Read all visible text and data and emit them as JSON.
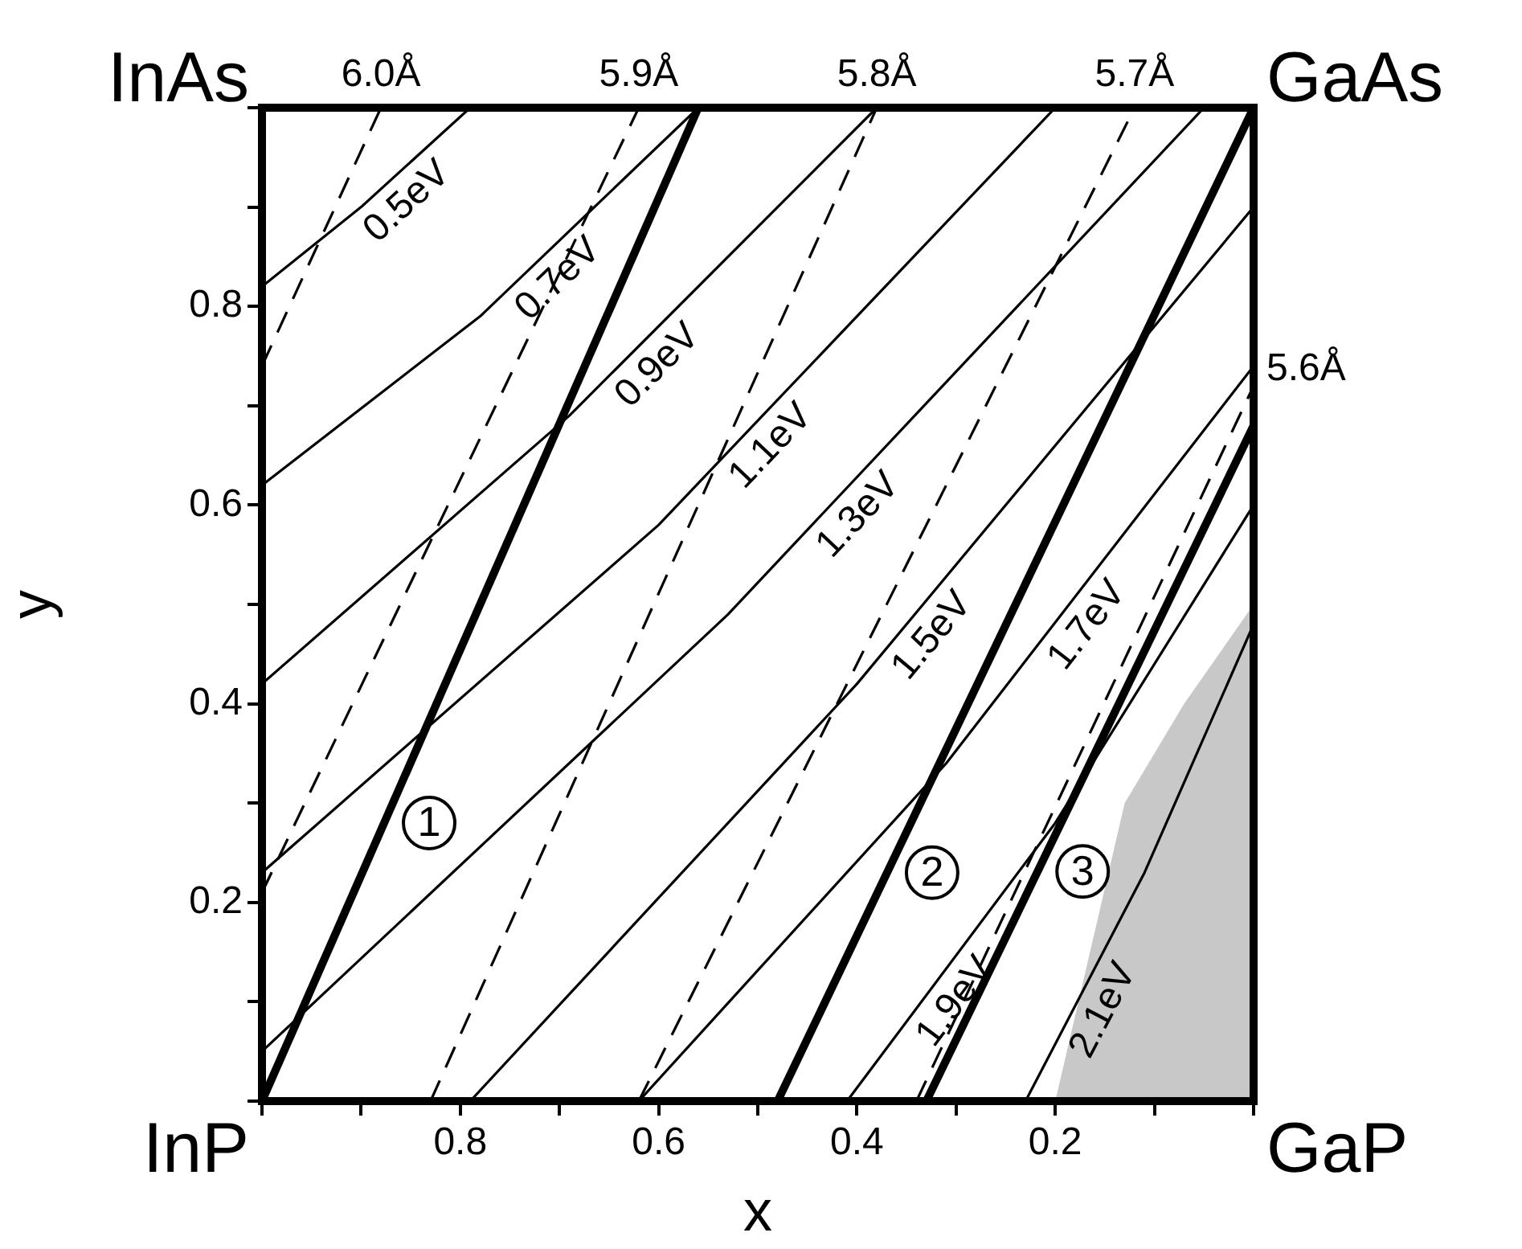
{
  "chart_data": {
    "type": "line",
    "xlabel": "x",
    "ylabel": "y",
    "xlim": [
      1,
      0
    ],
    "ylim": [
      0,
      1
    ],
    "xticks": [
      {
        "value": 1,
        "label": null
      },
      {
        "value": 0.9,
        "label": null
      },
      0.8,
      {
        "value": 0.7,
        "label": null
      },
      0.6,
      {
        "value": 0.5,
        "label": null
      },
      0.4,
      {
        "value": 0.3,
        "label": null
      },
      0.2,
      {
        "value": 0.1,
        "label": null
      },
      {
        "value": 0,
        "label": null
      }
    ],
    "yticks": [
      {
        "value": 0,
        "label": null
      },
      {
        "value": 0.1,
        "label": null
      },
      0.2,
      {
        "value": 0.3,
        "label": null
      },
      0.4,
      {
        "value": 0.5,
        "label": null
      },
      0.6,
      {
        "value": 0.7,
        "label": null
      },
      0.8,
      {
        "value": 0.9,
        "label": null
      },
      {
        "value": 1,
        "label": null
      }
    ],
    "grid": false,
    "legend": false,
    "marker": "none",
    "series": [
      {
        "name": "0.5eV",
        "color": "#000000",
        "line_style": "solid",
        "x": [
          1,
          0.9,
          0.79
        ],
        "values": [
          0.82,
          0.9,
          1
        ]
      },
      {
        "name": "0.7eV",
        "color": "#000000",
        "line_style": "solid",
        "x": [
          1,
          0.78,
          0.56
        ],
        "values": [
          0.62,
          0.79,
          1
        ]
      },
      {
        "name": "0.9eV",
        "color": "#000000",
        "line_style": "solid",
        "x": [
          1,
          0.69,
          0.38
        ],
        "values": [
          0.42,
          0.69,
          1
        ]
      },
      {
        "name": "1.1eV",
        "color": "#000000",
        "line_style": "solid",
        "x": [
          1,
          0.6,
          0.2
        ],
        "values": [
          0.23,
          0.58,
          1
        ]
      },
      {
        "name": "1.3eV",
        "color": "#000000",
        "line_style": "solid",
        "x": [
          1,
          0.53,
          0.05
        ],
        "values": [
          0.05,
          0.49,
          1
        ]
      },
      {
        "name": "1.5eV",
        "color": "#000000",
        "line_style": "solid",
        "x": [
          0.79,
          0.4,
          0
        ],
        "values": [
          0,
          0.42,
          0.9
        ]
      },
      {
        "name": "1.7eV",
        "color": "#000000",
        "line_style": "solid",
        "x": [
          0.62,
          0.31,
          0
        ],
        "values": [
          0,
          0.34,
          0.74
        ]
      },
      {
        "name": "1.9eV",
        "color": "#000000",
        "line_style": "solid",
        "x": [
          0.41,
          0.2,
          0
        ],
        "values": [
          0,
          0.28,
          0.6
        ]
      },
      {
        "name": "2.1eV",
        "color": "#000000",
        "line_style": "solid",
        "x": [
          0.23,
          0.11,
          0
        ],
        "values": [
          0,
          0.23,
          0.48
        ]
      },
      {
        "name": "6.0Å",
        "color": "#000000",
        "line_style": "dashed",
        "x": [
          1,
          0.88
        ],
        "values": [
          0.74,
          1
        ]
      },
      {
        "name": "5.9Å",
        "color": "#000000",
        "line_style": "dashed",
        "x": [
          1,
          0.62
        ],
        "values": [
          0.21,
          1
        ]
      },
      {
        "name": "5.8Å",
        "color": "#000000",
        "line_style": "dashed",
        "x": [
          0.83,
          0.38
        ],
        "values": [
          0,
          1
        ]
      },
      {
        "name": "5.7Å",
        "color": "#000000",
        "line_style": "dashed",
        "x": [
          0.62,
          0.12
        ],
        "values": [
          0,
          1
        ]
      },
      {
        "name": "5.6Å",
        "color": "#000000",
        "line_style": "dashed",
        "x": [
          0.34,
          0
        ],
        "values": [
          0,
          0.72
        ]
      },
      {
        "name": "1",
        "color": "#000000",
        "line_style": "solid",
        "x": [
          1,
          0.56
        ],
        "values": [
          0,
          1
        ]
      },
      {
        "name": "2",
        "color": "#000000",
        "line_style": "solid",
        "x": [
          0.48,
          0
        ],
        "values": [
          0,
          1
        ]
      },
      {
        "name": "3",
        "color": "#000000",
        "line_style": "solid",
        "x": [
          0.33,
          0
        ],
        "values": [
          0,
          0.68
        ]
      },
      {
        "type": "area",
        "color": "#c8c8c8",
        "x": [
          0.2,
          0.13,
          0.07,
          0
        ],
        "values": [
          0,
          0.3,
          0.4,
          0.5
        ]
      }
    ],
    "annotations": [
      "InAs",
      "GaAs",
      "InP",
      "GaP"
    ]
  }
}
